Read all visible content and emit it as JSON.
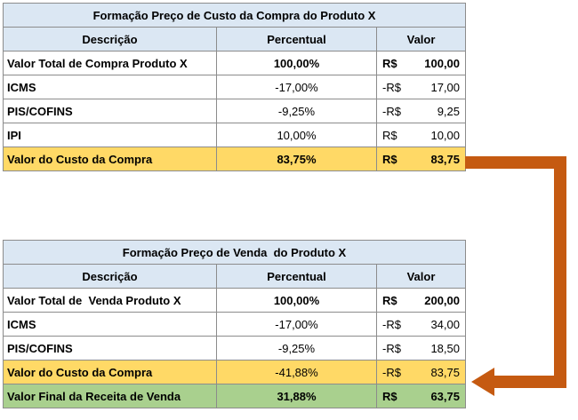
{
  "colors": {
    "header_bg": "#dbe7f3",
    "highlight_yellow": "#ffd966",
    "highlight_green": "#a9d08e",
    "arrow": "#c55a11"
  },
  "compra": {
    "title": "Formação Preço de Custo da Compra do Produto X",
    "headers": {
      "descricao": "Descrição",
      "percentual": "Percentual",
      "valor": "Valor"
    },
    "rows": [
      {
        "descricao": "Valor Total de Compra Produto X",
        "percentual": "100,00%",
        "moeda": "R$",
        "valor": "100,00"
      },
      {
        "descricao": "ICMS",
        "percentual": "-17,00%",
        "moeda": "-R$",
        "valor": "17,00"
      },
      {
        "descricao": "PIS/COFINS",
        "percentual": "-9,25%",
        "moeda": "-R$",
        "valor": "9,25"
      },
      {
        "descricao": "IPI",
        "percentual": "10,00%",
        "moeda": "R$",
        "valor": "10,00"
      },
      {
        "descricao": "Valor do Custo da Compra",
        "percentual": "83,75%",
        "moeda": "R$",
        "valor": "83,75"
      }
    ]
  },
  "venda": {
    "title": "Formação Preço de Venda  do Produto X",
    "headers": {
      "descricao": "Descrição",
      "percentual": "Percentual",
      "valor": "Valor"
    },
    "rows": [
      {
        "descricao": "Valor Total de  Venda Produto X",
        "percentual": "100,00%",
        "moeda": "R$",
        "valor": "200,00"
      },
      {
        "descricao": "ICMS",
        "percentual": "-17,00%",
        "moeda": "-R$",
        "valor": "34,00"
      },
      {
        "descricao": "PIS/COFINS",
        "percentual": "-9,25%",
        "moeda": "-R$",
        "valor": "18,50"
      },
      {
        "descricao": "Valor do Custo da Compra",
        "percentual": "-41,88%",
        "moeda": "-R$",
        "valor": "83,75"
      },
      {
        "descricao": "Valor Final da Receita de Venda",
        "percentual": "31,88%",
        "moeda": "R$",
        "valor": "63,75"
      }
    ]
  }
}
